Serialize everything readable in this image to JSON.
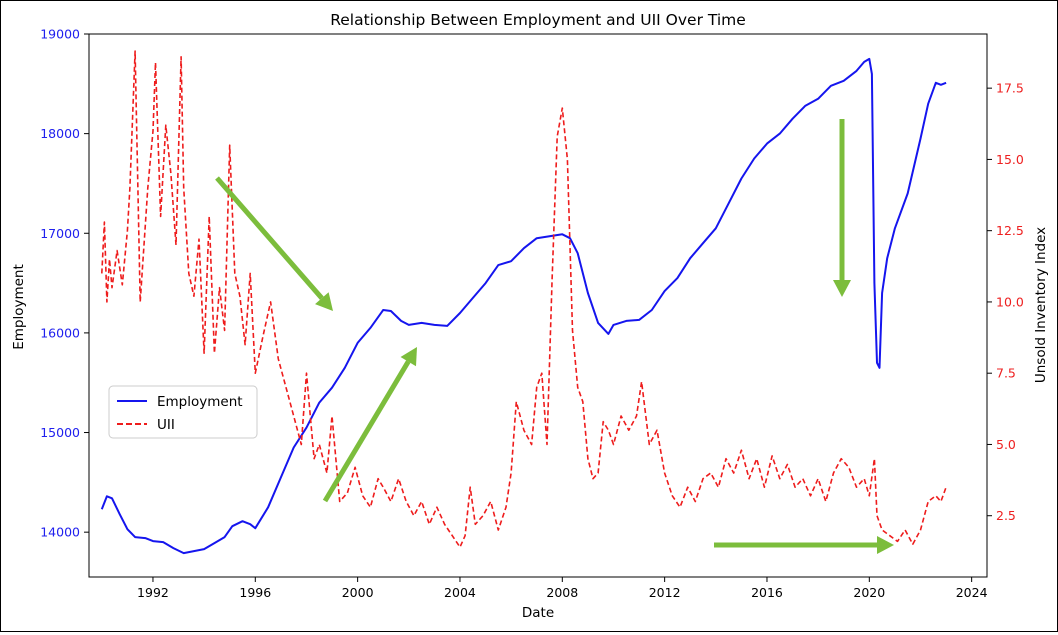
{
  "chart_data": {
    "type": "line",
    "title": "Relationship Between Employment and UII Over Time",
    "xlabel": "Date",
    "ylabel_left": "Employment",
    "ylabel_right": "Unsold Inventory Index",
    "xlim": [
      1989.5,
      2024.6
    ],
    "ylim_left": [
      13550,
      19000
    ],
    "ylim_right": [
      0.35,
      19.4
    ],
    "x_ticks": [
      "1992",
      "1996",
      "2000",
      "2004",
      "2008",
      "2012",
      "2016",
      "2020",
      "2024"
    ],
    "y_left_ticks": [
      "14000",
      "15000",
      "16000",
      "17000",
      "18000",
      "19000"
    ],
    "y_right_ticks": [
      "2.5",
      "5.0",
      "7.5",
      "10.0",
      "12.5",
      "15.0",
      "17.5"
    ],
    "legend_placement": "center-left",
    "colors": {
      "employment": "#1515ee",
      "uii": "#ee1c1c",
      "annotation_arrows": "#7cbd3c",
      "left_axis_text": "#2020ee",
      "right_axis_text": "#ee2020"
    },
    "series": [
      {
        "name": "Employment",
        "axis": "left",
        "style": "solid",
        "x": [
          1990.0,
          1990.2,
          1990.4,
          1990.7,
          1991.0,
          1991.3,
          1991.7,
          1992.0,
          1992.4,
          1992.8,
          1993.2,
          1993.6,
          1994.0,
          1994.4,
          1994.8,
          1995.1,
          1995.5,
          1995.8,
          1996.0,
          1996.5,
          1997.0,
          1997.5,
          1998.0,
          1998.5,
          1999.0,
          1999.5,
          2000.0,
          2000.5,
          2001.0,
          2001.3,
          2001.7,
          2002.0,
          2002.5,
          2003.0,
          2003.5,
          2004.0,
          2004.5,
          2005.0,
          2005.5,
          2006.0,
          2006.5,
          2007.0,
          2007.5,
          2008.0,
          2008.3,
          2008.6,
          2009.0,
          2009.4,
          2009.8,
          2010.0,
          2010.5,
          2011.0,
          2011.5,
          2012.0,
          2012.5,
          2013.0,
          2013.5,
          2014.0,
          2014.5,
          2015.0,
          2015.5,
          2016.0,
          2016.5,
          2017.0,
          2017.5,
          2018.0,
          2018.5,
          2019.0,
          2019.5,
          2019.8,
          2020.0,
          2020.1,
          2020.2,
          2020.3,
          2020.4,
          2020.5,
          2020.7,
          2021.0,
          2021.5,
          2022.0,
          2022.3,
          2022.6,
          2022.8,
          2023.0
        ],
        "y": [
          14230,
          14360,
          14340,
          14180,
          14030,
          13950,
          13940,
          13910,
          13900,
          13840,
          13790,
          13810,
          13830,
          13890,
          13950,
          14060,
          14110,
          14080,
          14040,
          14250,
          14550,
          14850,
          15050,
          15300,
          15450,
          15650,
          15900,
          16050,
          16230,
          16220,
          16120,
          16080,
          16100,
          16080,
          16070,
          16200,
          16350,
          16500,
          16680,
          16720,
          16850,
          16950,
          16970,
          16990,
          16950,
          16800,
          16400,
          16100,
          15990,
          16080,
          16120,
          16130,
          16230,
          16420,
          16550,
          16750,
          16900,
          17050,
          17300,
          17550,
          17750,
          17900,
          18000,
          18150,
          18280,
          18350,
          18480,
          18530,
          18630,
          18720,
          18750,
          18600,
          16500,
          15700,
          15650,
          16400,
          16750,
          17050,
          17400,
          17950,
          18300,
          18510,
          18490,
          18510
        ]
      },
      {
        "name": "UII",
        "axis": "right",
        "style": "dashed",
        "x": [
          1990.0,
          1990.1,
          1990.2,
          1990.3,
          1990.4,
          1990.6,
          1990.8,
          1991.0,
          1991.1,
          1991.3,
          1991.5,
          1991.8,
          1992.0,
          1992.1,
          1992.3,
          1992.5,
          1992.7,
          1992.9,
          1993.1,
          1993.2,
          1993.4,
          1993.6,
          1993.8,
          1994.0,
          1994.2,
          1994.4,
          1994.6,
          1994.8,
          1995.0,
          1995.2,
          1995.4,
          1995.6,
          1995.8,
          1996.0,
          1996.3,
          1996.6,
          1996.9,
          1997.2,
          1997.5,
          1997.8,
          1998.0,
          1998.3,
          1998.5,
          1998.8,
          1999.0,
          1999.3,
          1999.6,
          1999.9,
          2000.2,
          2000.5,
          2000.8,
          2001.0,
          2001.3,
          2001.6,
          2001.9,
          2002.2,
          2002.5,
          2002.8,
          2003.1,
          2003.4,
          2003.7,
          2004.0,
          2004.2,
          2004.4,
          2004.6,
          2004.9,
          2005.2,
          2005.5,
          2005.8,
          2006.0,
          2006.2,
          2006.5,
          2006.8,
          2007.0,
          2007.2,
          2007.4,
          2007.6,
          2007.8,
          2008.0,
          2008.2,
          2008.4,
          2008.6,
          2008.8,
          2009.0,
          2009.2,
          2009.4,
          2009.6,
          2009.8,
          2010.0,
          2010.3,
          2010.6,
          2010.9,
          2011.1,
          2011.4,
          2011.7,
          2012.0,
          2012.3,
          2012.6,
          2012.9,
          2013.2,
          2013.5,
          2013.8,
          2014.1,
          2014.4,
          2014.7,
          2015.0,
          2015.3,
          2015.6,
          2015.9,
          2016.2,
          2016.5,
          2016.8,
          2017.1,
          2017.4,
          2017.7,
          2018.0,
          2018.3,
          2018.6,
          2018.9,
          2019.2,
          2019.5,
          2019.8,
          2020.0,
          2020.2,
          2020.3,
          2020.5,
          2020.8,
          2021.1,
          2021.4,
          2021.7,
          2022.0,
          2022.3,
          2022.6,
          2022.8,
          2023.0
        ],
        "y": [
          11.0,
          12.8,
          10.0,
          11.5,
          10.5,
          11.8,
          10.6,
          12.5,
          14.0,
          18.8,
          10.0,
          14.0,
          16.0,
          18.4,
          13.0,
          16.2,
          14.5,
          12.0,
          18.6,
          14.0,
          11.0,
          10.2,
          12.2,
          8.2,
          13.0,
          8.2,
          10.5,
          9.0,
          15.5,
          11.0,
          10.2,
          8.5,
          11.0,
          7.5,
          8.8,
          10.0,
          8.0,
          7.0,
          6.0,
          5.0,
          7.5,
          4.5,
          5.0,
          4.0,
          6.0,
          3.0,
          3.3,
          4.2,
          3.2,
          2.8,
          3.8,
          3.5,
          3.0,
          3.8,
          3.0,
          2.5,
          3.0,
          2.2,
          2.8,
          2.2,
          1.8,
          1.4,
          1.8,
          3.5,
          2.2,
          2.5,
          3.0,
          2.0,
          2.8,
          4.0,
          6.5,
          5.5,
          5.0,
          7.0,
          7.5,
          5.0,
          10.8,
          15.8,
          16.8,
          15.0,
          9.0,
          7.0,
          6.5,
          4.5,
          3.8,
          4.0,
          5.8,
          5.5,
          5.0,
          6.0,
          5.5,
          6.0,
          7.2,
          5.0,
          5.5,
          4.0,
          3.2,
          2.8,
          3.5,
          3.0,
          3.8,
          4.0,
          3.5,
          4.5,
          4.0,
          4.8,
          3.8,
          4.5,
          3.5,
          4.6,
          3.8,
          4.3,
          3.5,
          3.8,
          3.2,
          3.8,
          3.0,
          4.0,
          4.5,
          4.2,
          3.5,
          3.8,
          3.2,
          4.5,
          2.5,
          2.0,
          1.8,
          1.6,
          2.0,
          1.5,
          2.0,
          3.0,
          3.2,
          3.0,
          3.5
        ]
      }
    ]
  }
}
